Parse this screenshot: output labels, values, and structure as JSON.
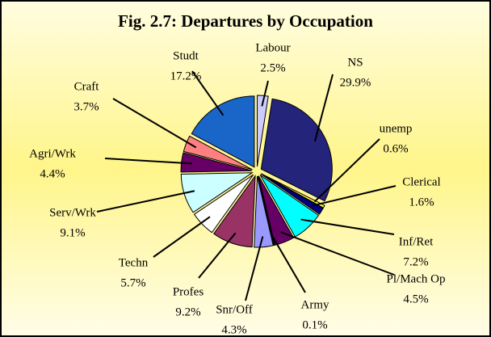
{
  "chart_data": {
    "type": "pie",
    "title": "Fig. 2.7: Departures by Occupation",
    "categories": [
      "Labour",
      "NS",
      "unemp",
      "Clerical",
      "Inf/Ret",
      "Pl/Mach Op",
      "Army",
      "Snr/Off",
      "Profes",
      "Techn",
      "Serv/Wrk",
      "Agri/Wrk",
      "Craft",
      "Studt"
    ],
    "values": [
      2.5,
      29.9,
      0.6,
      1.6,
      7.2,
      4.5,
      0.1,
      4.3,
      9.2,
      5.7,
      9.1,
      4.4,
      3.7,
      17.2
    ],
    "value_labels": [
      "2.5%",
      "29.9%",
      "0.6%",
      "1.6%",
      "7.2%",
      "4.5%",
      "0.1%",
      "4.3%",
      "9.2%",
      "5.7%",
      "9.1%",
      "4.4%",
      "3.7%",
      "17.2%"
    ],
    "colors": [
      "#ccccff",
      "#24247a",
      "#ffff33",
      "#000080",
      "#00ffff",
      "#660066",
      "#ff8080",
      "#9999ff",
      "#993366",
      "#ffffff",
      "#ccffff",
      "#660066",
      "#ff8080",
      "#1a66c8"
    ]
  }
}
